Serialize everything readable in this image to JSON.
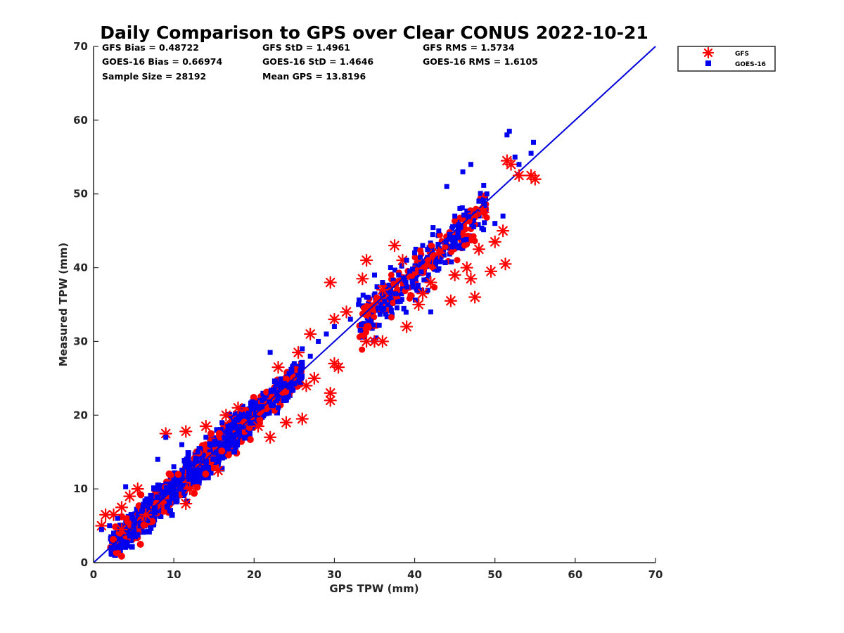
{
  "chart_data": {
    "type": "scatter",
    "title": "Daily Comparison to GPS over Clear CONUS 2022-10-21",
    "xlabel": "GPS TPW (mm)",
    "ylabel": "Measured TPW (mm)",
    "xlim": [
      0,
      70
    ],
    "ylim": [
      0,
      70
    ],
    "xticks": [
      "0",
      "10",
      "20",
      "30",
      "40",
      "50",
      "60",
      "70"
    ],
    "yticks": [
      "0",
      "10",
      "20",
      "30",
      "40",
      "50",
      "60",
      "70"
    ],
    "grid": false,
    "legend_position": "top-right outside",
    "stats": [
      "GFS Bias = 0.48722",
      "GFS StD = 1.4961",
      "GFS RMS = 1.5734",
      "GOES-16 Bias = 0.66974",
      "GOES-16 StD = 1.4646",
      "GOES-16 RMS = 1.6105",
      "Sample Size = 28192",
      "Mean GPS = 13.8196"
    ],
    "reference_line": {
      "name": "1:1",
      "x": [
        0,
        70
      ],
      "y": [
        0,
        70
      ],
      "color": "#0000dd"
    },
    "series": [
      {
        "name": "GFS",
        "marker": "asterisk",
        "color": "#ff0000",
        "points": [
          [
            1,
            5
          ],
          [
            1.5,
            6.5
          ],
          [
            2.5,
            6.5
          ],
          [
            3.5,
            4.5
          ],
          [
            3.5,
            7.5
          ],
          [
            4.5,
            9
          ],
          [
            5.5,
            10
          ],
          [
            6.5,
            6.5
          ],
          [
            9,
            17.5
          ],
          [
            11.5,
            17.8
          ],
          [
            11.5,
            8
          ],
          [
            12,
            10
          ],
          [
            14,
            18.5
          ],
          [
            15.5,
            12.5
          ],
          [
            16.5,
            20
          ],
          [
            18,
            21
          ],
          [
            20.5,
            18.5
          ],
          [
            22,
            17
          ],
          [
            23,
            26.5
          ],
          [
            24,
            19
          ],
          [
            25.5,
            28.5
          ],
          [
            26,
            19.5
          ],
          [
            26.5,
            24
          ],
          [
            27,
            31
          ],
          [
            27.5,
            25
          ],
          [
            29.5,
            22
          ],
          [
            29.5,
            23
          ],
          [
            29.5,
            38
          ],
          [
            30,
            33
          ],
          [
            30,
            27
          ],
          [
            30.5,
            26.5
          ],
          [
            31.5,
            34
          ],
          [
            33.5,
            38.5
          ],
          [
            34,
            30
          ],
          [
            34,
            41
          ],
          [
            35,
            30
          ],
          [
            36,
            30
          ],
          [
            36,
            37
          ],
          [
            37.5,
            43
          ],
          [
            38.5,
            41
          ],
          [
            39,
            32
          ],
          [
            40.5,
            35
          ],
          [
            41,
            36.5
          ],
          [
            42,
            38
          ],
          [
            43,
            42
          ],
          [
            44.5,
            35.5
          ],
          [
            45,
            39
          ],
          [
            46.5,
            40
          ],
          [
            47,
            38.5
          ],
          [
            47.5,
            36
          ],
          [
            48,
            42.5
          ],
          [
            48.5,
            47.5
          ],
          [
            49.5,
            39.5
          ],
          [
            50,
            43.5
          ],
          [
            51,
            45
          ],
          [
            51.3,
            40.5
          ],
          [
            51.5,
            54.5
          ],
          [
            52,
            54
          ],
          [
            53,
            52.5
          ],
          [
            54.5,
            52.5
          ],
          [
            55,
            52
          ]
        ]
      },
      {
        "name": "GOES-16",
        "marker": "square",
        "color": "#0000ee",
        "points": [
          [
            1,
            4.5
          ],
          [
            2,
            5
          ],
          [
            3,
            6
          ],
          [
            4,
            10.3
          ],
          [
            5,
            5
          ],
          [
            6,
            7
          ],
          [
            7,
            8
          ],
          [
            8,
            14
          ],
          [
            9,
            17
          ],
          [
            10,
            13
          ],
          [
            11,
            16
          ],
          [
            12,
            12
          ],
          [
            13,
            15
          ],
          [
            14,
            17
          ],
          [
            15,
            16
          ],
          [
            16,
            19
          ],
          [
            17,
            18
          ],
          [
            18,
            19.5
          ],
          [
            19,
            20
          ],
          [
            20,
            21
          ],
          [
            21,
            22
          ],
          [
            22,
            28.5
          ],
          [
            23,
            21
          ],
          [
            24,
            22
          ],
          [
            25,
            27
          ],
          [
            26,
            29
          ],
          [
            27,
            28
          ],
          [
            28,
            30
          ],
          [
            29,
            31
          ],
          [
            30,
            32
          ],
          [
            32,
            33
          ],
          [
            33,
            35
          ],
          [
            34,
            36
          ],
          [
            35,
            39
          ],
          [
            36,
            38
          ],
          [
            37,
            40
          ],
          [
            38,
            39
          ],
          [
            39,
            41
          ],
          [
            40,
            42
          ],
          [
            41,
            43
          ],
          [
            42,
            34
          ],
          [
            43,
            45
          ],
          [
            44,
            51
          ],
          [
            45,
            47
          ],
          [
            46,
            53
          ],
          [
            47,
            54
          ],
          [
            48,
            49
          ],
          [
            49,
            50
          ],
          [
            50,
            46
          ],
          [
            51,
            47
          ],
          [
            51.5,
            58
          ],
          [
            51.8,
            58.5
          ],
          [
            52.5,
            55
          ],
          [
            53,
            54
          ],
          [
            54.5,
            55.5
          ],
          [
            54.8,
            57
          ]
        ]
      }
    ]
  }
}
